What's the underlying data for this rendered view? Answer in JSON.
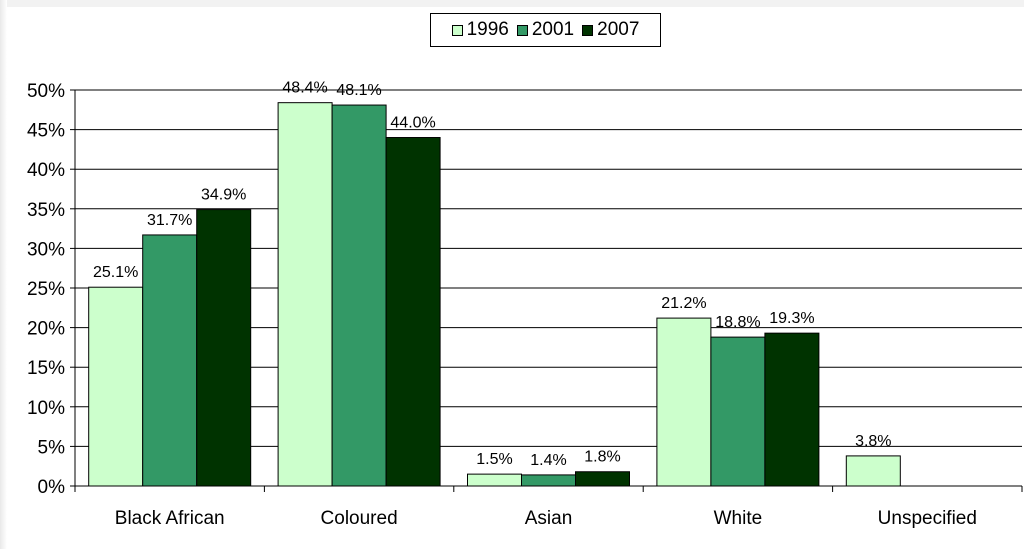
{
  "chart_data": {
    "type": "bar",
    "categories": [
      "Black African",
      "Coloured",
      "Asian",
      "White",
      "Unspecified"
    ],
    "series": [
      {
        "name": "1996",
        "color": "#ccffcc",
        "values": [
          25.1,
          48.4,
          1.5,
          21.2,
          3.8
        ]
      },
      {
        "name": "2001",
        "color": "#339966",
        "values": [
          31.7,
          48.1,
          1.4,
          18.8,
          null
        ]
      },
      {
        "name": "2007",
        "color": "#003300",
        "values": [
          34.9,
          44.0,
          1.8,
          19.3,
          null
        ]
      }
    ],
    "data_labels": [
      [
        "25.1%",
        "48.4%",
        "1.5%",
        "21.2%",
        "3.8%"
      ],
      [
        "31.7%",
        "48.1%",
        "1.4%",
        "18.8%",
        null
      ],
      [
        "34.9%",
        "44.0%",
        "1.8%",
        "19.3%",
        null
      ]
    ],
    "y_ticks": [
      "0%",
      "5%",
      "10%",
      "15%",
      "20%",
      "25%",
      "30%",
      "35%",
      "40%",
      "45%",
      "50%"
    ],
    "y_tick_values": [
      0,
      5,
      10,
      15,
      20,
      25,
      30,
      35,
      40,
      45,
      50
    ],
    "ylim": [
      0,
      50
    ],
    "grid": true,
    "legend_position": "top-center",
    "title": "",
    "xlabel": "",
    "ylabel": ""
  }
}
